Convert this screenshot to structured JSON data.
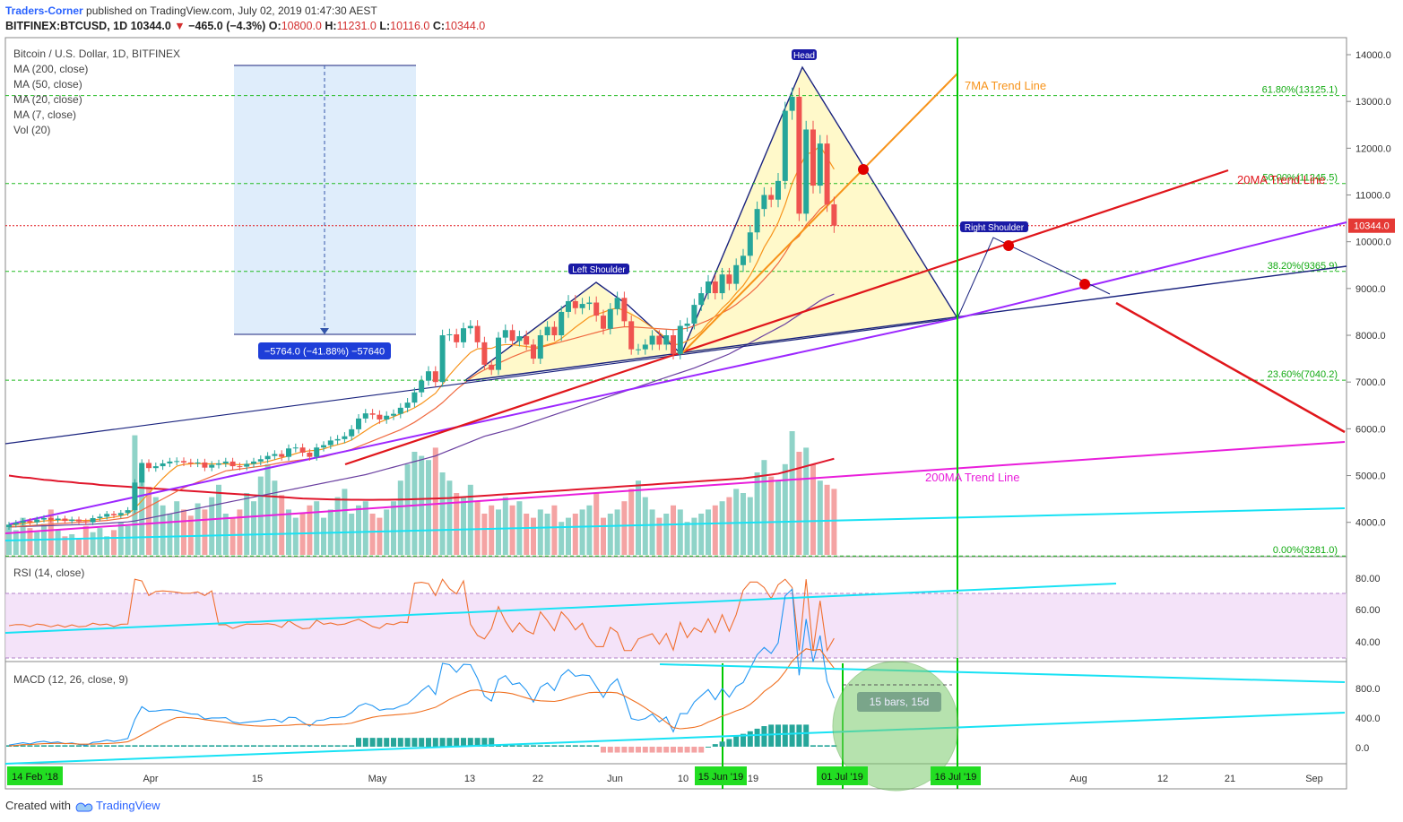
{
  "header": {
    "author": "Traders-Corner",
    "published": "published on TradingView.com, July 02, 2019 01:47:30 AEST",
    "symbol": "BITFINEX:BTCUSD, 1D",
    "last": "10344.0",
    "change": "−465.0 (−4.3%)",
    "o_label": "O:",
    "o": "10800.0",
    "h_label": "H:",
    "h": "11231.0",
    "l_label": "L:",
    "l": "10116.0",
    "c_label": "C:",
    "c": "10344.0"
  },
  "legend": {
    "title": "Bitcoin / U.S. Dollar, 1D, BITFINEX",
    "items": [
      "MA (200, close)",
      "MA (50, close)",
      "MA (20, close)",
      "MA (7, close)",
      "Vol (20)"
    ]
  },
  "rsi_label": "RSI (14, close)",
  "macd_label": "MACD (12, 26, close, 9)",
  "footer": {
    "created": "Created with",
    "brand": "TradingView"
  },
  "colors": {
    "up": "#26a69a",
    "down": "#ef5350",
    "blue_line": "#1a237e",
    "red_line": "#e0161b",
    "orange": "#f7931a",
    "purple": "#9c27ff",
    "magenta": "#e91edb",
    "cyan": "#18e2f4",
    "green": "#00c800",
    "fib": "#22bb22",
    "fill": "#fff8c4"
  },
  "chart_data": {
    "type": "candlestick",
    "price_axis": {
      "min": 3281,
      "max": 14000,
      "ticks": [
        "14000.0",
        "13000.0",
        "12000.0",
        "11000.0",
        "10000.0",
        "9000.0",
        "8000.0",
        "7000.0",
        "6000.0",
        "5000.0",
        "4000.0"
      ]
    },
    "last_price_label": "10344.0",
    "x_ticks": [
      "Apr",
      "15",
      "May",
      "13",
      "22",
      "Jun",
      "10",
      "19",
      "Jul",
      "12",
      "21",
      "Aug",
      "Sep"
    ],
    "x_highlight_labels": [
      "14 Feb '18",
      "15 Jun '19",
      "01 Jul '19",
      "16 Jul '19"
    ],
    "fib_levels": [
      {
        "label": "61.80%(13125.1)",
        "value": 13125.1
      },
      {
        "label": "50.00%(11245.5)",
        "value": 11245.5
      },
      {
        "label": "38.20%(9365.9)",
        "value": 9365.9
      },
      {
        "label": "23.60%(7040.2)",
        "value": 7040.2
      },
      {
        "label": "0.00%(3281.0)",
        "value": 3281.0
      }
    ],
    "pattern_labels": {
      "head": "Head",
      "left_shoulder": "Left Shoulder",
      "right_shoulder": "Right Shoulder"
    },
    "annotations": {
      "ma7_trend": "7MA Trend Line",
      "ma20_trend": "20MA Trend Line",
      "ma200_trend": "200MA Trend Line",
      "measure": "−5764.0 (−41.88%) −57640",
      "bars": "15 bars, 15d"
    },
    "rsi_axis": {
      "ticks": [
        "80.00",
        "60.00",
        "40.00"
      ]
    },
    "macd_axis": {
      "ticks": [
        "800.0",
        "400.0",
        "0.0"
      ]
    },
    "closes": [
      3950,
      3990,
      4030,
      4000,
      4060,
      4090,
      4050,
      4080,
      4030,
      4060,
      4020,
      4000,
      4090,
      4120,
      4180,
      4150,
      4200,
      4260,
      4850,
      5270,
      5160,
      5200,
      5260,
      5300,
      5310,
      5280,
      5260,
      5280,
      5170,
      5230,
      5260,
      5300,
      5200,
      5190,
      5250,
      5300,
      5350,
      5420,
      5460,
      5400,
      5580,
      5600,
      5490,
      5400,
      5600,
      5650,
      5750,
      5780,
      5840,
      5990,
      6220,
      6330,
      6300,
      6200,
      6280,
      6320,
      6450,
      6560,
      6780,
      7030,
      7230,
      7000,
      8000,
      8020,
      7850,
      8150,
      8200,
      7850,
      7370,
      7260,
      7950,
      8110,
      7880,
      7980,
      7800,
      7500,
      8000,
      8180,
      8000,
      8500,
      8730,
      8580,
      8670,
      8700,
      8420,
      8140,
      8560,
      8800,
      8300,
      7700,
      7700,
      7800,
      7990,
      7800,
      8000,
      7600,
      8200,
      8250,
      8650,
      8900,
      9150,
      8900,
      9300,
      9100,
      9500,
      9700,
      10200,
      10700,
      11000,
      10900,
      11300,
      12800,
      13100,
      10600,
      12400,
      11200,
      12100,
      10800,
      10344
    ],
    "opens": [
      3900,
      3950,
      3990,
      4030,
      4000,
      4060,
      4090,
      4050,
      4080,
      4030,
      4060,
      4020,
      4000,
      4090,
      4120,
      4180,
      4150,
      4200,
      4260,
      4850,
      5270,
      5160,
      5200,
      5260,
      5300,
      5310,
      5280,
      5260,
      5280,
      5170,
      5230,
      5260,
      5300,
      5200,
      5190,
      5250,
      5300,
      5350,
      5420,
      5460,
      5400,
      5580,
      5600,
      5490,
      5400,
      5600,
      5650,
      5750,
      5780,
      5840,
      5990,
      6220,
      6330,
      6300,
      6200,
      6280,
      6320,
      6450,
      6560,
      6780,
      7030,
      7230,
      7000,
      8000,
      8020,
      7850,
      8150,
      8200,
      7850,
      7370,
      7260,
      7950,
      8110,
      7880,
      7980,
      7800,
      7500,
      8000,
      8180,
      8000,
      8500,
      8730,
      8580,
      8670,
      8700,
      8420,
      8140,
      8560,
      8800,
      8300,
      7700,
      7700,
      7800,
      7990,
      7800,
      8000,
      7600,
      8200,
      8250,
      8650,
      8900,
      9150,
      8900,
      9300,
      9100,
      9500,
      9700,
      10200,
      10700,
      11000,
      10900,
      11300,
      12800,
      13100,
      10600,
      12400,
      11200,
      12100,
      10800
    ],
    "volumes": [
      14,
      12,
      18,
      13,
      11,
      15,
      22,
      12,
      9,
      10,
      8,
      14,
      11,
      13,
      9,
      12,
      16,
      14,
      58,
      42,
      33,
      28,
      24,
      20,
      26,
      22,
      19,
      25,
      22,
      28,
      34,
      20,
      18,
      22,
      30,
      26,
      38,
      44,
      36,
      29,
      22,
      18,
      20,
      24,
      26,
      18,
      22,
      28,
      32,
      20,
      24,
      26,
      20,
      18,
      22,
      26,
      36,
      44,
      50,
      48,
      46,
      52,
      40,
      36,
      30,
      28,
      34,
      26,
      20,
      24,
      22,
      28,
      24,
      26,
      20,
      18,
      22,
      20,
      24,
      16,
      18,
      20,
      22,
      24,
      30,
      18,
      20,
      22,
      26,
      32,
      36,
      28,
      22,
      18,
      20,
      24,
      22,
      16,
      18,
      20,
      22,
      24,
      26,
      28,
      32,
      30,
      28,
      40,
      46,
      38,
      36,
      44,
      60,
      50,
      52,
      44,
      36,
      34,
      32
    ],
    "series": [
      {
        "name": "MA (200, close)",
        "values": [
          5000,
          4980,
          4960,
          4950,
          4930,
          4910,
          4900,
          4880,
          4870,
          4860,
          4840,
          4830,
          4820,
          4800,
          4790,
          4780,
          4770,
          4760,
          4750,
          4740,
          4730,
          4720,
          4710,
          4700,
          4690,
          4680,
          4670,
          4660,
          4650,
          4640,
          4630,
          4620,
          4610,
          4600,
          4590,
          4580,
          4570,
          4560,
          4550,
          4540,
          4530,
          4520,
          4510,
          4505,
          4500,
          4495,
          4490,
          4488,
          4486,
          4484,
          4482,
          4480,
          4480,
          4482,
          4484,
          4486,
          4488,
          4490,
          4495,
          4500,
          4505,
          4510,
          4515,
          4520,
          4530,
          4540,
          4550,
          4560,
          4570,
          4580,
          4590,
          4600,
          4610,
          4620,
          4630,
          4640,
          4650,
          4660,
          4670,
          4680,
          4690,
          4700,
          4710,
          4720,
          4730,
          4740,
          4750,
          4760,
          4770,
          4780,
          4790,
          4800,
          4810,
          4820,
          4830,
          4840,
          4850,
          4860,
          4870,
          4880,
          4890,
          4900,
          4910,
          4920,
          4930,
          4940,
          4960,
          4980,
          5000,
          5020,
          5040,
          5080,
          5120,
          5160,
          5200,
          5240,
          5280,
          5320,
          5360
        ]
      },
      {
        "name": "MA (50, close)",
        "values": [
          3900,
          3905,
          3910,
          3915,
          3920,
          3925,
          3930,
          3935,
          3940,
          3945,
          3950,
          3955,
          3960,
          3970,
          3980,
          3990,
          4000,
          4010,
          4030,
          4060,
          4090,
          4120,
          4150,
          4180,
          4210,
          4240,
          4270,
          4300,
          4330,
          4360,
          4390,
          4420,
          4450,
          4480,
          4510,
          4540,
          4570,
          4600,
          4630,
          4660,
          4690,
          4720,
          4750,
          4780,
          4810,
          4840,
          4870,
          4900,
          4930,
          4960,
          4990,
          5020,
          5060,
          5100,
          5140,
          5180,
          5220,
          5260,
          5300,
          5340,
          5380,
          5420,
          5480,
          5540,
          5600,
          5660,
          5720,
          5780,
          5840,
          5880,
          5920,
          5960,
          6000,
          6050,
          6100,
          6150,
          6200,
          6250,
          6300,
          6350,
          6400,
          6450,
          6500,
          6550,
          6600,
          6650,
          6700,
          6750,
          6800,
          6850,
          6900,
          6950,
          7000,
          7050,
          7100,
          7150,
          7200,
          7250,
          7300,
          7360,
          7420,
          7480,
          7540,
          7600,
          7680,
          7760,
          7840,
          7920,
          8000,
          8080,
          8160,
          8240,
          8340,
          8440,
          8540,
          8640,
          8740,
          8820,
          8880
        ]
      },
      {
        "name": "MA (20, close)",
        "values": [
          3900,
          3910,
          3920,
          3930,
          3940,
          3950,
          3960,
          3970,
          3980,
          3990,
          4000,
          4010,
          4020,
          4030,
          4040,
          4060,
          4080,
          4100,
          4180,
          4260,
          4340,
          4420,
          4500,
          4580,
          4660,
          4740,
          4800,
          4860,
          4920,
          4980,
          5040,
          5100,
          5120,
          5140,
          5160,
          5180,
          5200,
          5220,
          5250,
          5280,
          5300,
          5320,
          5340,
          5360,
          5380,
          5400,
          5440,
          5480,
          5520,
          5560,
          5620,
          5680,
          5740,
          5800,
          5860,
          5920,
          5980,
          6060,
          6140,
          6240,
          6340,
          6440,
          6560,
          6700,
          6840,
          6960,
          7080,
          7180,
          7260,
          7330,
          7400,
          7470,
          7540,
          7600,
          7660,
          7700,
          7740,
          7780,
          7820,
          7860,
          7900,
          7940,
          7980,
          8020,
          8060,
          8100,
          8140,
          8160,
          8180,
          8180,
          8170,
          8160,
          8150,
          8140,
          8130,
          8120,
          8130,
          8150,
          8200,
          8260,
          8320,
          8400,
          8480,
          8560,
          8660,
          8780,
          8900,
          9040,
          9200,
          9360,
          9540,
          9760,
          10000,
          10120,
          10360,
          10520,
          10700,
          10820,
          10900
        ]
      },
      {
        "name": "MA (7, close)",
        "values": [
          3930,
          3950,
          3980,
          3990,
          4010,
          4030,
          4040,
          4050,
          4050,
          4050,
          4040,
          4040,
          4050,
          4070,
          4090,
          4110,
          4140,
          4180,
          4300,
          4460,
          4620,
          4780,
          4940,
          5080,
          5200,
          5240,
          5250,
          5260,
          5250,
          5250,
          5250,
          5250,
          5240,
          5230,
          5240,
          5250,
          5270,
          5300,
          5340,
          5380,
          5420,
          5470,
          5510,
          5530,
          5540,
          5570,
          5620,
          5660,
          5700,
          5760,
          5860,
          5960,
          6060,
          6140,
          6200,
          6260,
          6320,
          6380,
          6450,
          6540,
          6650,
          6760,
          6950,
          7150,
          7320,
          7480,
          7630,
          7710,
          7720,
          7720,
          7780,
          7800,
          7800,
          7780,
          7760,
          7740,
          7760,
          7800,
          7840,
          7930,
          8050,
          8170,
          8280,
          8390,
          8450,
          8490,
          8550,
          8580,
          8530,
          8450,
          8370,
          8270,
          8160,
          8060,
          7930,
          7800,
          7810,
          7880,
          7960,
          8080,
          8260,
          8410,
          8580,
          8720,
          8900,
          9060,
          9280,
          9560,
          9880,
          10130,
          10410,
          10790,
          11250,
          11580,
          11870,
          11920,
          12050,
          11800,
          11550
        ]
      }
    ]
  }
}
